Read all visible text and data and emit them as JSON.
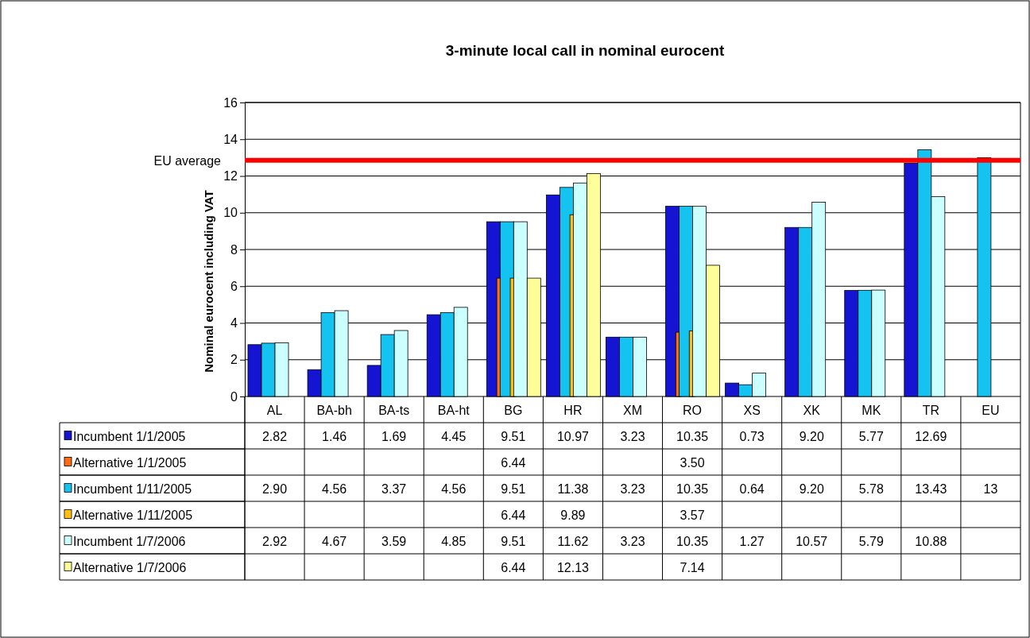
{
  "chart_data": {
    "type": "bar",
    "title": "3-minute local call in nominal eurocent",
    "ylabel": "Nominal eurocent including VAT",
    "categories": [
      "AL",
      "BA-bh",
      "BA-ts",
      "BA-ht",
      "BG",
      "HR",
      "XM",
      "RO",
      "XS",
      "XK",
      "MK",
      "TR",
      "EU"
    ],
    "series": [
      {
        "name": "Incumbent 1/1/2005",
        "color": "#1414d2",
        "values": [
          2.82,
          1.46,
          1.69,
          4.45,
          9.51,
          10.97,
          3.23,
          10.35,
          0.73,
          9.2,
          5.77,
          12.69,
          null
        ],
        "value_labels": [
          "2.82",
          "1.46",
          "1.69",
          "4.45",
          "9.51",
          "10.97",
          "3.23",
          "10.35",
          "0.73",
          "9.20",
          "5.77",
          "12.69",
          null
        ]
      },
      {
        "name": "Alternative 1/1/2005",
        "color": "#ff6a14",
        "values": [
          null,
          null,
          null,
          null,
          6.44,
          null,
          null,
          3.5,
          null,
          null,
          null,
          null,
          null
        ],
        "value_labels": [
          null,
          null,
          null,
          null,
          "6.44",
          null,
          null,
          "3.50",
          null,
          null,
          null,
          null,
          null
        ]
      },
      {
        "name": "Incumbent 1/11/2005",
        "color": "#14c3f0",
        "values": [
          2.9,
          4.56,
          3.37,
          4.56,
          9.51,
          11.38,
          3.23,
          10.35,
          0.64,
          9.2,
          5.78,
          13.43,
          13
        ],
        "value_labels": [
          "2.90",
          "4.56",
          "3.37",
          "4.56",
          "9.51",
          "11.38",
          "3.23",
          "10.35",
          "0.64",
          "9.20",
          "5.78",
          "13.43",
          "13"
        ]
      },
      {
        "name": "Alternative 1/11/2005",
        "color": "#ffc014",
        "values": [
          null,
          null,
          null,
          null,
          6.44,
          9.89,
          null,
          3.57,
          null,
          null,
          null,
          null,
          null
        ],
        "value_labels": [
          null,
          null,
          null,
          null,
          "6.44",
          "9.89",
          null,
          "3.57",
          null,
          null,
          null,
          null,
          null
        ]
      },
      {
        "name": "Incumbent 1/7/2006",
        "color": "#ccffff",
        "values": [
          2.92,
          4.67,
          3.59,
          4.85,
          9.51,
          11.62,
          3.23,
          10.35,
          1.27,
          10.57,
          5.79,
          10.88,
          null
        ],
        "value_labels": [
          "2.92",
          "4.67",
          "3.59",
          "4.85",
          "9.51",
          "11.62",
          "3.23",
          "10.35",
          "1.27",
          "10.57",
          "5.79",
          "10.88",
          null
        ]
      },
      {
        "name": "Alternative 1/7/2006",
        "color": "#ffff99",
        "values": [
          null,
          null,
          null,
          null,
          6.44,
          12.13,
          null,
          7.14,
          null,
          null,
          null,
          null,
          null
        ],
        "value_labels": [
          null,
          null,
          null,
          null,
          "6.44",
          "12.13",
          null,
          "7.14",
          null,
          null,
          null,
          null,
          null
        ]
      }
    ],
    "ylim": [
      0,
      16
    ],
    "yticks": [
      0,
      2,
      4,
      6,
      8,
      10,
      12,
      14,
      16
    ],
    "grid": "y",
    "legend": "bottom",
    "ref_lines": [
      {
        "axis": "y",
        "value": 12.85,
        "label": "EU average",
        "color": "#ff0000"
      }
    ]
  }
}
